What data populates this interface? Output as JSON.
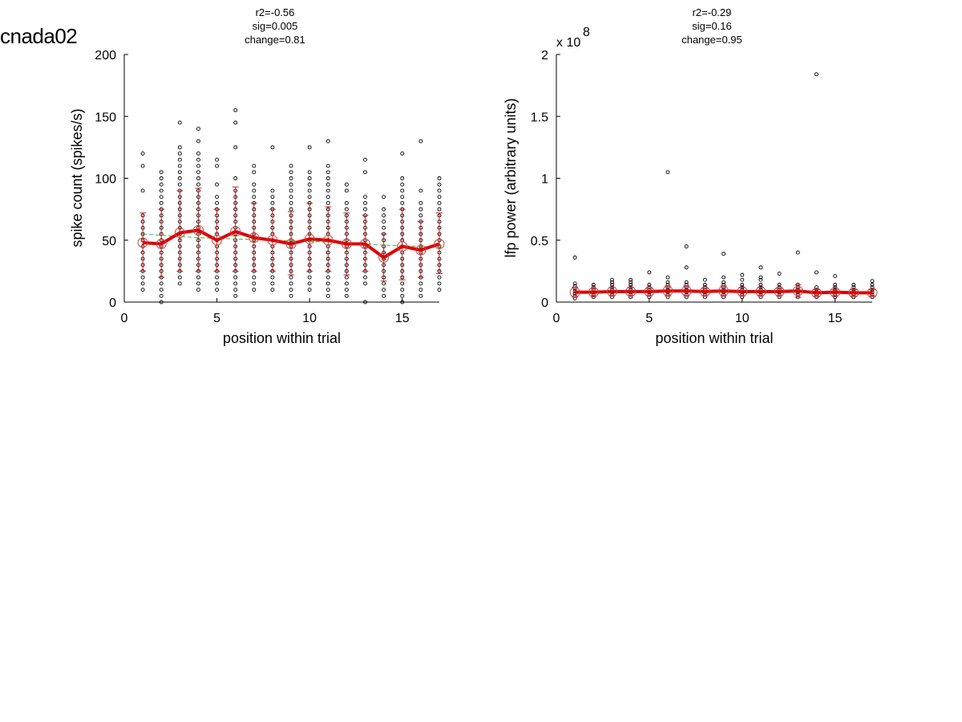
{
  "figure_title": "cnada02",
  "chart_data": [
    {
      "type": "scatter",
      "stats": [
        "r2=-0.56",
        "sig=0.005",
        "change=0.81"
      ],
      "xlabel": "position within trial",
      "ylabel": "spike count (spikes/s)",
      "xlim": [
        0,
        17
      ],
      "ylim": [
        0,
        200
      ],
      "xticks": [
        0,
        5,
        10,
        15
      ],
      "yticks": [
        0,
        50,
        100,
        150,
        200
      ],
      "ytick_labels": [
        "0",
        "50",
        "100",
        "150",
        "200"
      ],
      "exponent_label": "",
      "grid": false,
      "x": [
        1,
        2,
        3,
        4,
        5,
        6,
        7,
        8,
        9,
        10,
        11,
        12,
        13,
        14,
        15,
        16,
        17
      ],
      "mean": [
        48,
        47,
        56,
        58,
        50,
        57,
        52,
        50,
        47,
        51,
        50,
        47,
        47,
        36,
        45,
        42,
        47
      ],
      "sd_high": [
        72,
        75,
        90,
        92,
        75,
        93,
        80,
        75,
        73,
        80,
        77,
        72,
        70,
        55,
        75,
        65,
        72
      ],
      "sd_low": [
        25,
        20,
        25,
        25,
        25,
        25,
        25,
        25,
        22,
        25,
        25,
        22,
        25,
        17,
        18,
        20,
        23
      ],
      "trend": [
        55,
        54,
        53,
        52,
        51.5,
        51,
        50.5,
        50,
        49.5,
        49,
        48.5,
        48,
        47,
        46,
        45.5,
        45,
        44
      ],
      "points": [
        [
          10,
          15,
          20,
          25,
          30,
          35,
          40,
          45,
          50,
          55,
          60,
          65,
          70,
          90,
          110,
          120
        ],
        [
          0,
          5,
          10,
          15,
          20,
          25,
          30,
          35,
          40,
          45,
          50,
          55,
          60,
          65,
          70,
          75,
          80,
          85,
          90,
          95,
          100,
          105
        ],
        [
          15,
          20,
          25,
          30,
          35,
          40,
          45,
          50,
          55,
          60,
          65,
          70,
          75,
          80,
          85,
          90,
          95,
          100,
          105,
          110,
          115,
          120,
          125,
          145
        ],
        [
          10,
          15,
          20,
          25,
          30,
          35,
          40,
          45,
          50,
          55,
          60,
          65,
          70,
          75,
          80,
          85,
          90,
          95,
          100,
          105,
          110,
          115,
          120,
          130,
          140
        ],
        [
          10,
          15,
          20,
          25,
          30,
          35,
          40,
          45,
          50,
          55,
          60,
          65,
          70,
          75,
          80,
          85,
          95,
          110,
          115
        ],
        [
          5,
          10,
          15,
          20,
          25,
          30,
          35,
          40,
          45,
          50,
          55,
          60,
          65,
          70,
          75,
          80,
          85,
          90,
          100,
          125,
          145,
          155
        ],
        [
          10,
          15,
          20,
          25,
          30,
          35,
          40,
          45,
          50,
          55,
          60,
          65,
          70,
          75,
          80,
          85,
          90,
          95,
          105,
          110
        ],
        [
          10,
          15,
          20,
          25,
          30,
          35,
          40,
          45,
          50,
          55,
          60,
          65,
          70,
          75,
          80,
          85,
          90,
          125
        ],
        [
          5,
          10,
          15,
          20,
          25,
          30,
          35,
          40,
          45,
          50,
          55,
          60,
          65,
          70,
          75,
          80,
          85,
          90,
          95,
          100,
          105,
          110
        ],
        [
          10,
          15,
          20,
          25,
          30,
          35,
          40,
          45,
          50,
          55,
          60,
          65,
          70,
          75,
          80,
          85,
          90,
          95,
          100,
          105,
          125
        ],
        [
          5,
          10,
          15,
          20,
          25,
          30,
          35,
          40,
          45,
          50,
          55,
          60,
          65,
          70,
          75,
          80,
          85,
          90,
          95,
          100,
          105,
          110,
          130
        ],
        [
          5,
          10,
          15,
          20,
          25,
          30,
          35,
          40,
          45,
          50,
          55,
          60,
          65,
          70,
          75,
          80,
          90,
          95
        ],
        [
          0,
          15,
          20,
          25,
          30,
          35,
          40,
          45,
          50,
          55,
          60,
          65,
          70,
          75,
          80,
          85,
          105,
          115
        ],
        [
          5,
          10,
          15,
          20,
          25,
          30,
          35,
          40,
          45,
          50,
          55,
          60,
          65,
          70,
          75,
          85
        ],
        [
          0,
          5,
          10,
          15,
          20,
          25,
          30,
          35,
          40,
          45,
          50,
          55,
          60,
          65,
          70,
          75,
          80,
          85,
          90,
          95,
          100,
          120
        ],
        [
          5,
          10,
          15,
          20,
          25,
          30,
          35,
          40,
          45,
          50,
          55,
          60,
          65,
          70,
          75,
          80,
          90,
          130
        ],
        [
          10,
          15,
          20,
          25,
          30,
          35,
          40,
          45,
          50,
          55,
          60,
          65,
          70,
          75,
          80,
          85,
          90,
          95,
          100
        ]
      ]
    },
    {
      "type": "scatter",
      "stats": [
        "r2=-0.29",
        "sig=0.16",
        "change=0.95"
      ],
      "xlabel": "position within trial",
      "ylabel": "lfp power (arbitrary units)",
      "xlim": [
        0,
        17
      ],
      "ylim": [
        0,
        2
      ],
      "xticks": [
        0,
        5,
        10,
        15
      ],
      "yticks": [
        0,
        0.5,
        1,
        1.5,
        2
      ],
      "ytick_labels": [
        "0",
        "0.5",
        "1",
        "1.5",
        "2"
      ],
      "exponent_label": "x 10",
      "exponent_power": "8",
      "grid": false,
      "x": [
        1,
        2,
        3,
        4,
        5,
        6,
        7,
        8,
        9,
        10,
        11,
        12,
        13,
        14,
        15,
        16,
        17
      ],
      "mean": [
        0.08,
        0.08,
        0.085,
        0.085,
        0.085,
        0.09,
        0.09,
        0.085,
        0.09,
        0.085,
        0.085,
        0.085,
        0.09,
        0.075,
        0.08,
        0.075,
        0.075
      ],
      "sd_high": [
        0.12,
        0.11,
        0.12,
        0.12,
        0.11,
        0.13,
        0.13,
        0.11,
        0.13,
        0.12,
        0.12,
        0.11,
        0.14,
        0.1,
        0.1,
        0.1,
        0.1
      ],
      "sd_low": [
        0.04,
        0.05,
        0.05,
        0.05,
        0.05,
        0.05,
        0.05,
        0.05,
        0.05,
        0.05,
        0.05,
        0.05,
        0.04,
        0.05,
        0.05,
        0.05,
        0.05
      ],
      "trend": [],
      "points": [
        [
          0.03,
          0.05,
          0.07,
          0.09,
          0.11,
          0.13,
          0.15,
          0.36
        ],
        [
          0.04,
          0.06,
          0.08,
          0.1,
          0.12,
          0.14
        ],
        [
          0.04,
          0.06,
          0.08,
          0.1,
          0.12,
          0.14,
          0.16,
          0.18
        ],
        [
          0.04,
          0.06,
          0.08,
          0.1,
          0.12,
          0.14,
          0.16,
          0.18
        ],
        [
          0.04,
          0.06,
          0.08,
          0.1,
          0.12,
          0.14,
          0.24
        ],
        [
          0.04,
          0.06,
          0.08,
          0.1,
          0.12,
          0.14,
          0.16,
          0.2,
          1.05
        ],
        [
          0.04,
          0.06,
          0.08,
          0.1,
          0.12,
          0.14,
          0.16,
          0.28,
          0.45
        ],
        [
          0.04,
          0.06,
          0.08,
          0.1,
          0.12,
          0.14,
          0.18
        ],
        [
          0.04,
          0.06,
          0.08,
          0.1,
          0.12,
          0.14,
          0.16,
          0.2,
          0.39
        ],
        [
          0.04,
          0.06,
          0.08,
          0.1,
          0.12,
          0.14,
          0.18,
          0.22
        ],
        [
          0.04,
          0.06,
          0.08,
          0.1,
          0.12,
          0.14,
          0.18,
          0.2,
          0.28
        ],
        [
          0.04,
          0.06,
          0.08,
          0.1,
          0.12,
          0.14,
          0.23
        ],
        [
          0.04,
          0.06,
          0.08,
          0.1,
          0.12,
          0.14,
          0.4
        ],
        [
          0.04,
          0.06,
          0.08,
          0.1,
          0.12,
          0.24,
          1.84
        ],
        [
          0.04,
          0.06,
          0.08,
          0.1,
          0.12,
          0.14,
          0.21
        ],
        [
          0.04,
          0.06,
          0.08,
          0.1,
          0.12,
          0.14
        ],
        [
          0.04,
          0.06,
          0.08,
          0.1,
          0.12,
          0.14,
          0.17
        ]
      ]
    }
  ],
  "colors": {
    "mean_line": "#e00000",
    "error_bar": "#cc2222",
    "trend_line": "#33bb33",
    "marker": "#000000",
    "mean_marker": "#cc4444",
    "axis": "#000000"
  }
}
